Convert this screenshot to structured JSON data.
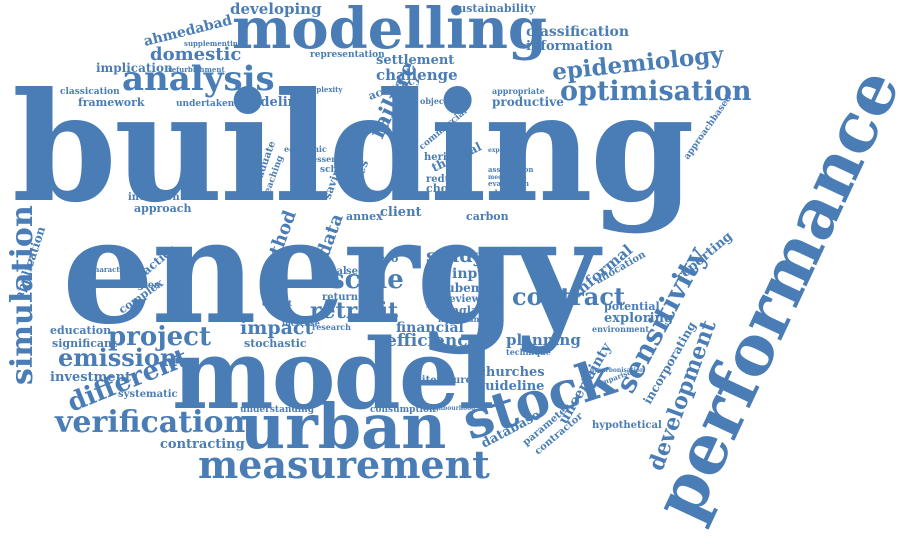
{
  "word_cloud": {
    "color": "#4a7db5",
    "words": {
      "building": "building",
      "energy": "energy",
      "model": "model",
      "urban": "urban",
      "measurement": "measurement",
      "stock": "stock",
      "performance": "performance",
      "modelling": "modelling",
      "analysis": "analysis",
      "optimisation": "optimisation",
      "epidemiology": "epidemiology",
      "simulation": "simulation",
      "verification": "verification",
      "sensitivity": "sensitivity",
      "development": "development",
      "different": "different",
      "project": "project",
      "emission": "emission",
      "contract": "contract",
      "scale": "scale",
      "retrofit": "retrofit",
      "efficiency": "efficiency",
      "financial": "financial",
      "impact": "impact",
      "failure": "failure",
      "domestic": "domestic",
      "developing": "developing",
      "sustainability": "sustainability",
      "classification": "classification",
      "information": "information",
      "ahmedabad": "ahmedabad",
      "implication": "implication",
      "settlement": "settlement",
      "challenge": "challenge",
      "modeling": "modeling",
      "framework": "framework",
      "productive": "productive",
      "planning": "planning",
      "technique": "technique",
      "uncertainty": "uncertainty",
      "database": "database",
      "churches": "churches",
      "guideline": "guideline",
      "contracting": "contracting",
      "investment": "investment",
      "education": "education",
      "significant": "significant",
      "application": "application",
      "practice": "practice",
      "strategies": "strategies",
      "complex": "complex",
      "approach": "approach",
      "reporting": "reporting",
      "informal": "informal",
      "exploring": "exploring",
      "potential": "potential",
      "environment": "environment",
      "incorporating": "incorporating",
      "hypothetical": "hypothetical",
      "contractor": "contractor",
      "parameter": "parameter",
      "understanding": "understanding",
      "systematic": "systematic",
      "consumption": "consumption",
      "literature": "literature",
      "study": "study",
      "input": "input",
      "ubems": "ubems",
      "review": "review",
      "england": "england",
      "important": "important",
      "result": "result",
      "method": "method",
      "data": "data",
      "annex": "annex",
      "client": "client",
      "carbon": "carbon",
      "cities": "cities",
      "saving": "saving",
      "choice": "choice",
      "thermal": "thermal",
      "heritage": "heritage",
      "reduce": "reduce",
      "stochastic": "stochastic",
      "increase": "increase",
      "output": "output",
      "research": "research",
      "accuracy": "accuracy",
      "representation": "representation",
      "undertaken": "undertaken",
      "approachbased": "approachbased",
      "classication": "classication",
      "supplementing": "supplementing",
      "refurbishment": "refurbishment",
      "appropriate": "appropriate",
      "objective": "objective",
      "complexity": "complexity",
      "inclusion": "inclusion",
      "characteristic": "characteristic",
      "return": "return",
      "global": "global",
      "sector": "sector",
      "zero": "zero",
      "allocation": "allocation",
      "comparison": "comparison",
      "decarbonisation": "decarbonisation",
      "neighbourhood": "neighbourhood",
      "economic": "economic",
      "graduate": "graduate",
      "teaching": "teaching",
      "commercial": "commercial",
      "school": "school",
      "essential": "essential",
      "assumption": "assumption",
      "evaluation": "evaluation",
      "decision": "decision",
      "experience": "experience",
      "mechanism": "mechanism"
    }
  }
}
